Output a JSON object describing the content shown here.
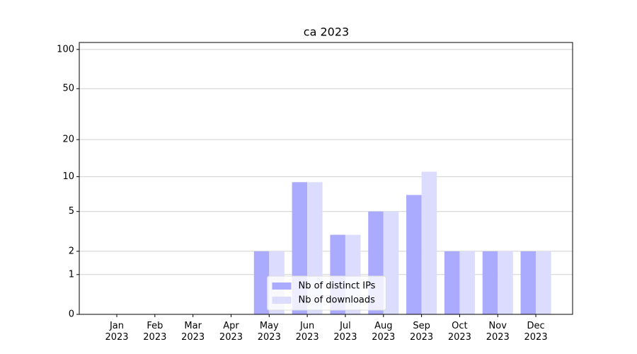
{
  "chart_data": {
    "type": "bar",
    "title": "ca 2023",
    "categories": [
      "Jan\n2023",
      "Feb\n2023",
      "Mar\n2023",
      "Apr\n2023",
      "May\n2023",
      "Jun\n2023",
      "Jul\n2023",
      "Aug\n2023",
      "Sep\n2023",
      "Oct\n2023",
      "Nov\n2023",
      "Dec\n2023"
    ],
    "series": [
      {
        "name": "Nb of distinct IPs",
        "color": "#aaaaff",
        "values": [
          0,
          0,
          0,
          0,
          2,
          9,
          3,
          5,
          7,
          2,
          2,
          2
        ]
      },
      {
        "name": "Nb of downloads",
        "color": "#dcdcff",
        "values": [
          0,
          0,
          0,
          0,
          2,
          9,
          3,
          5,
          11,
          2,
          2,
          2
        ]
      }
    ],
    "scale": "log1p",
    "ylim": [
      0,
      113
    ],
    "yticks": [
      0,
      1,
      2,
      5,
      10,
      20,
      50,
      100
    ],
    "grid": true,
    "legend": "lower center"
  }
}
